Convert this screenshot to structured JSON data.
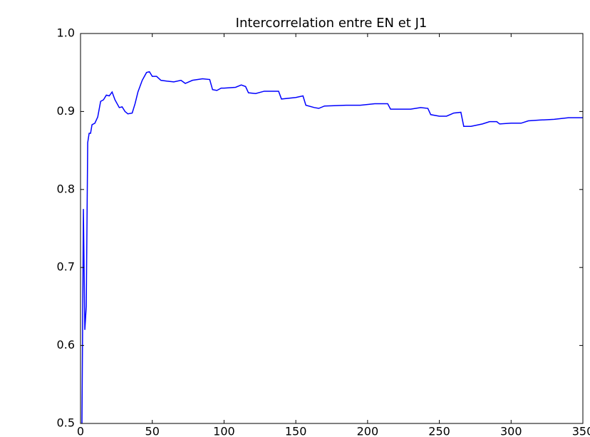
{
  "chart_data": {
    "type": "line",
    "title": "Intercorrelation entre EN et J1",
    "x": [
      1,
      2,
      3,
      4,
      5,
      6,
      7,
      8,
      10,
      12,
      14,
      16,
      18,
      20,
      22,
      24,
      27,
      29,
      31,
      33,
      36,
      38,
      40,
      43,
      46,
      48,
      50,
      53,
      56,
      60,
      65,
      70,
      73,
      78,
      85,
      90,
      92,
      95,
      98,
      100,
      108,
      112,
      115,
      117,
      122,
      128,
      138,
      140,
      150,
      155,
      157,
      163,
      166,
      170,
      185,
      195,
      205,
      214,
      216,
      230,
      237,
      242,
      244,
      250,
      255,
      260,
      265,
      267,
      272,
      280,
      285,
      290,
      292,
      300,
      307,
      312,
      320,
      330,
      340,
      350
    ],
    "series": [
      {
        "color": "#0000ff",
        "values": [
          0.5,
          0.775,
          0.62,
          0.65,
          0.86,
          0.872,
          0.872,
          0.883,
          0.885,
          0.893,
          0.913,
          0.915,
          0.921,
          0.92,
          0.925,
          0.915,
          0.905,
          0.906,
          0.9,
          0.897,
          0.898,
          0.91,
          0.925,
          0.94,
          0.95,
          0.951,
          0.945,
          0.945,
          0.94,
          0.939,
          0.938,
          0.94,
          0.936,
          0.94,
          0.942,
          0.941,
          0.928,
          0.927,
          0.93,
          0.93,
          0.931,
          0.934,
          0.932,
          0.924,
          0.923,
          0.926,
          0.926,
          0.916,
          0.918,
          0.92,
          0.908,
          0.905,
          0.904,
          0.907,
          0.908,
          0.908,
          0.91,
          0.91,
          0.903,
          0.903,
          0.905,
          0.904,
          0.896,
          0.894,
          0.894,
          0.898,
          0.899,
          0.881,
          0.881,
          0.884,
          0.887,
          0.887,
          0.884,
          0.885,
          0.885,
          0.888,
          0.889,
          0.89,
          0.892,
          0.892
        ]
      }
    ],
    "xlim": [
      0,
      350
    ],
    "xticks": [
      0,
      50,
      100,
      150,
      200,
      250,
      300,
      350
    ],
    "ylim": [
      0.5,
      1
    ],
    "yticks": [
      0.5,
      0.6,
      0.7,
      0.8,
      0.9,
      {
        "value": 1,
        "label": "1.0"
      }
    ]
  }
}
